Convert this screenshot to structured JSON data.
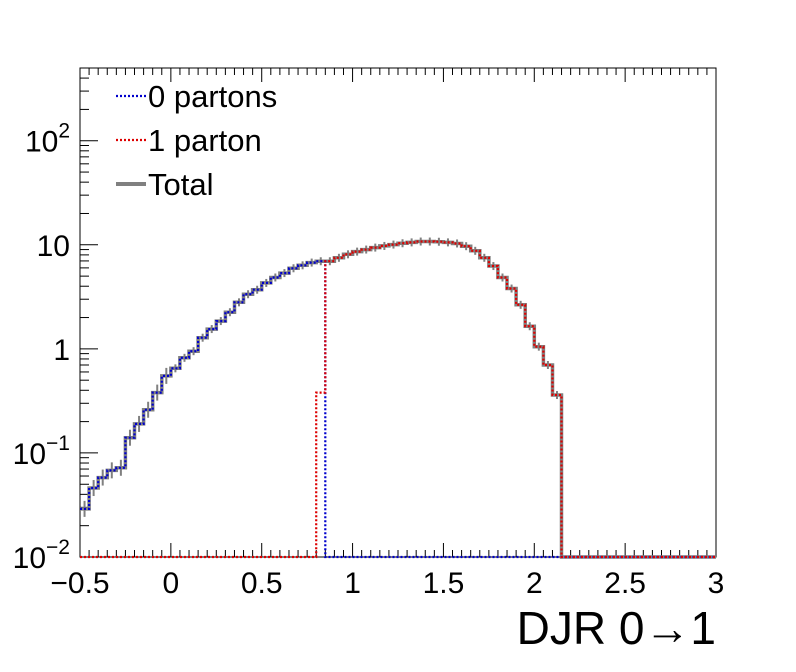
{
  "chart_data": {
    "type": "line",
    "xlabel": "DJR 0→1",
    "ylabel": "",
    "xlim": [
      -0.5,
      3.0
    ],
    "ylim": [
      0.01,
      500
    ],
    "yscale": "log",
    "grid": false,
    "legend_position": "top-left",
    "x_ticks": [
      {
        "value": -0.5,
        "label": "−0.5"
      },
      {
        "value": 0,
        "label": "0"
      },
      {
        "value": 0.5,
        "label": "0.5"
      },
      {
        "value": 1,
        "label": "1"
      },
      {
        "value": 1.5,
        "label": "1.5"
      },
      {
        "value": 2,
        "label": "2"
      },
      {
        "value": 2.5,
        "label": "2.5"
      },
      {
        "value": 3,
        "label": "3"
      }
    ],
    "y_ticks": [
      {
        "value": 0.01,
        "base": "10",
        "exp": "−2"
      },
      {
        "value": 0.1,
        "base": "10",
        "exp": "−1"
      },
      {
        "value": 1,
        "base": "1",
        "exp": ""
      },
      {
        "value": 10,
        "base": "10",
        "exp": ""
      },
      {
        "value": 100,
        "base": "10",
        "exp": "2"
      }
    ],
    "bin_edges": [
      -0.5,
      -0.45,
      -0.4,
      -0.35,
      -0.3,
      -0.25,
      -0.2,
      -0.15,
      -0.1,
      -0.05,
      0,
      0.05,
      0.1,
      0.15,
      0.2,
      0.25,
      0.3,
      0.35,
      0.4,
      0.45,
      0.5,
      0.55,
      0.6,
      0.65,
      0.7,
      0.75,
      0.8,
      0.85,
      0.9,
      0.95,
      1,
      1.05,
      1.1,
      1.15,
      1.2,
      1.25,
      1.3,
      1.35,
      1.4,
      1.45,
      1.5,
      1.55,
      1.6,
      1.65,
      1.7,
      1.75,
      1.8,
      1.85,
      1.9,
      1.95,
      2,
      2.05,
      2.1,
      2.15,
      2.2,
      2.25,
      2.3,
      2.35,
      2.4,
      2.45,
      2.5,
      2.55,
      2.6,
      2.65,
      2.7,
      2.75,
      2.8,
      2.85,
      2.9,
      2.95,
      3.0
    ],
    "series": [
      {
        "name": "0 partons",
        "color": "#0000cc",
        "style": "dotted",
        "values": [
          0.029,
          0.046,
          0.058,
          0.068,
          0.072,
          0.14,
          0.19,
          0.26,
          0.38,
          0.55,
          0.65,
          0.82,
          0.95,
          1.28,
          1.55,
          1.85,
          2.25,
          2.8,
          3.35,
          3.7,
          4.3,
          4.85,
          5.35,
          5.95,
          6.35,
          6.75,
          6.95,
          0.01,
          0.01,
          0.01,
          0.01,
          0.01,
          0.01,
          0.01,
          0.01,
          0.01,
          0.01,
          0.01,
          0.01,
          0.01,
          0.01,
          0.01,
          0.01,
          0.01,
          0.01,
          0.01,
          0.01,
          0.01,
          0.01,
          0.01,
          0.01,
          0.01,
          0.01,
          0.01,
          0.01,
          0.01,
          0.01,
          0.01,
          0.01,
          0.01,
          0.01,
          0.01,
          0.01,
          0.01,
          0.01,
          0.01,
          0.01,
          0.01,
          0.01,
          0.01
        ]
      },
      {
        "name": "1 parton",
        "color": "#dd0000",
        "style": "dotted",
        "values": [
          0.01,
          0.01,
          0.01,
          0.01,
          0.01,
          0.01,
          0.01,
          0.01,
          0.01,
          0.01,
          0.01,
          0.01,
          0.01,
          0.01,
          0.01,
          0.01,
          0.01,
          0.01,
          0.01,
          0.01,
          0.01,
          0.01,
          0.01,
          0.01,
          0.01,
          0.01,
          0.38,
          6.95,
          7.5,
          8.1,
          8.6,
          9.0,
          9.4,
          9.75,
          10.05,
          10.35,
          10.55,
          10.75,
          10.75,
          10.7,
          10.55,
          10.3,
          9.7,
          8.75,
          7.5,
          6.25,
          4.85,
          3.8,
          2.65,
          1.65,
          1.05,
          0.7,
          0.36,
          0.01,
          0.01,
          0.01,
          0.01,
          0.01,
          0.01,
          0.01,
          0.01,
          0.01,
          0.01,
          0.01,
          0.01,
          0.01,
          0.01,
          0.01,
          0.01,
          0.01
        ]
      },
      {
        "name": "Total",
        "color": "#808080",
        "style": "solid",
        "values": [
          0.029,
          0.046,
          0.058,
          0.068,
          0.072,
          0.14,
          0.19,
          0.26,
          0.38,
          0.55,
          0.65,
          0.82,
          0.95,
          1.28,
          1.55,
          1.85,
          2.25,
          2.8,
          3.35,
          3.7,
          4.3,
          4.85,
          5.35,
          5.95,
          6.35,
          6.75,
          6.95,
          6.95,
          7.5,
          8.1,
          8.6,
          9.0,
          9.4,
          9.75,
          10.05,
          10.35,
          10.55,
          10.75,
          10.75,
          10.7,
          10.55,
          10.3,
          9.7,
          8.75,
          7.5,
          6.25,
          4.85,
          3.8,
          2.65,
          1.65,
          1.05,
          0.7,
          0.36,
          0.01,
          0.01,
          0.01,
          0.01,
          0.01,
          0.01,
          0.01,
          0.01,
          0.01,
          0.01,
          0.01,
          0.01,
          0.01,
          0.01,
          0.01,
          0.01,
          0.01
        ]
      }
    ]
  }
}
